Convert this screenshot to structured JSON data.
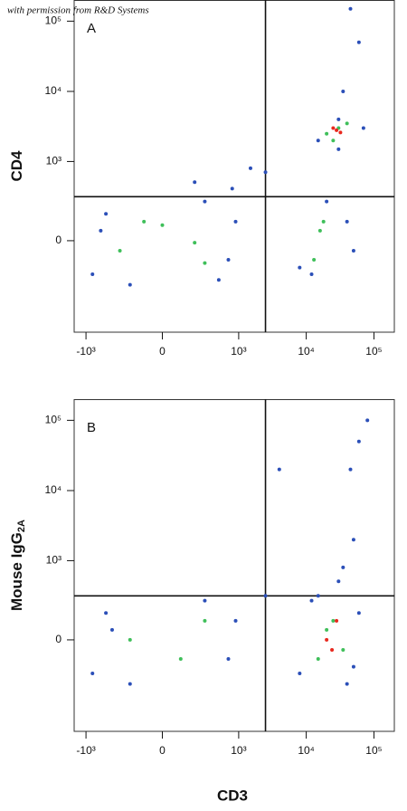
{
  "credit": "with permission from R&D Systems",
  "chart_data": [
    {
      "type": "scatter",
      "panel": "A",
      "ylabel": "CD4",
      "scale": "logicle",
      "xlim": [
        -1500,
        200000
      ],
      "ylim": [
        -1500,
        200000
      ],
      "xticks": [
        {
          "value": -1000,
          "label": "-10³"
        },
        0,
        {
          "value": 1000,
          "label": "10³"
        },
        {
          "value": 10000,
          "label": "10⁴"
        },
        {
          "value": 100000,
          "label": "10⁵"
        }
      ],
      "yticks": [
        0,
        {
          "value": 1000,
          "label": "10³"
        },
        {
          "value": 10000,
          "label": "10⁴"
        },
        {
          "value": 100000,
          "label": "10⁵"
        }
      ],
      "gate_x": 2500,
      "gate_y": 300,
      "series": [
        {
          "color": "#2b4fb8",
          "x": [
            -800,
            -500,
            -200,
            300,
            700,
            900,
            -600,
            500,
            12000,
            20000,
            8000,
            40000,
            50000,
            15000,
            30000,
            200,
            1500,
            800,
            2500,
            35000,
            60000,
            45000,
            30000,
            70000
          ],
          "values": [
            -200,
            150,
            -300,
            250,
            -100,
            100,
            50,
            -250,
            -200,
            250,
            -150,
            100,
            -50,
            2000,
            4000,
            500,
            800,
            400,
            700,
            10000,
            50000,
            150000,
            1500,
            3000
          ]
        },
        {
          "color": "#3fbf5a",
          "x": [
            -300,
            0,
            300,
            -100,
            200,
            13000,
            18000,
            16000,
            20000,
            30000,
            25000,
            40000
          ],
          "values": [
            -50,
            80,
            -120,
            100,
            -10,
            -100,
            100,
            50,
            2500,
            3000,
            2000,
            3500
          ]
        },
        {
          "color": "#e8281e",
          "x": [
            28000,
            32000,
            25000
          ],
          "values": [
            2800,
            2600,
            3000
          ]
        }
      ]
    },
    {
      "type": "scatter",
      "panel": "B",
      "ylabel": "Mouse IgG",
      "ylabel_sub": "2A",
      "xlabel": "CD3",
      "scale": "logicle",
      "xlim": [
        -1500,
        200000
      ],
      "ylim": [
        -1500,
        200000
      ],
      "xticks": [
        {
          "value": -1000,
          "label": "-10³"
        },
        0,
        {
          "value": 1000,
          "label": "10³"
        },
        {
          "value": 10000,
          "label": "10⁴"
        },
        {
          "value": 100000,
          "label": "10⁵"
        }
      ],
      "yticks": [
        0,
        {
          "value": 1000,
          "label": "10³"
        },
        {
          "value": 10000,
          "label": "10⁴"
        },
        {
          "value": 100000,
          "label": "10⁵"
        }
      ],
      "gate_x": 2500,
      "gate_y": 300,
      "series": [
        {
          "color": "#2b4fb8",
          "x": [
            -800,
            -500,
            -200,
            300,
            700,
            900,
            -400,
            8000,
            12000,
            50000,
            60000,
            40000,
            15000,
            4000,
            30000,
            45000,
            60000,
            80000,
            50000,
            35000,
            2500
          ],
          "values": [
            -200,
            150,
            -300,
            250,
            -100,
            100,
            50,
            -200,
            250,
            -150,
            150,
            -300,
            300,
            20000,
            500,
            20000,
            50000,
            100000,
            2000,
            800,
            300
          ]
        },
        {
          "color": "#3fbf5a",
          "x": [
            -200,
            100,
            300,
            15000,
            25000,
            35000,
            20000
          ],
          "values": [
            0,
            -100,
            100,
            -100,
            100,
            -50,
            50
          ]
        },
        {
          "color": "#e8281e",
          "x": [
            20000,
            28000,
            24000
          ],
          "values": [
            0,
            100,
            -50
          ]
        }
      ]
    }
  ]
}
